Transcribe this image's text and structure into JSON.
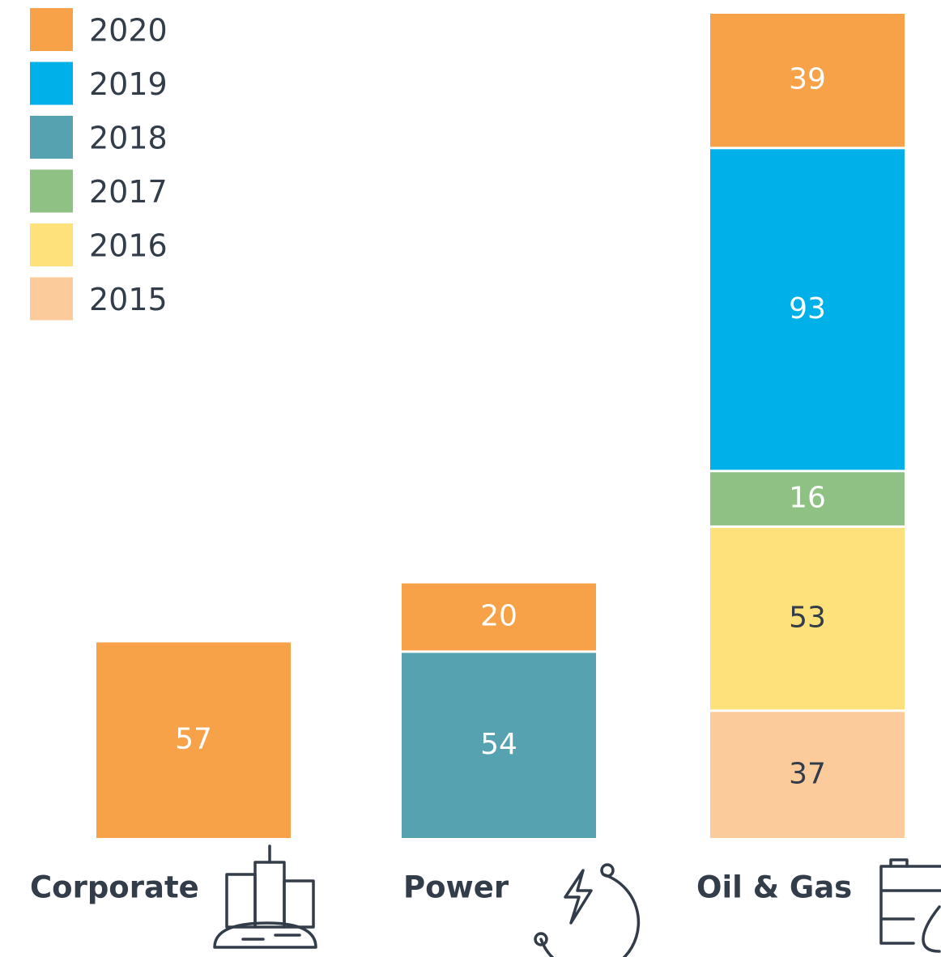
{
  "chart_data": {
    "type": "stacked-bar",
    "categories": [
      "Corporate",
      "Power",
      "Oil & Gas"
    ],
    "series": [
      {
        "name": "2020",
        "color": "#f7a148",
        "values": [
          57,
          20,
          39
        ]
      },
      {
        "name": "2019",
        "color": "#00b0e8",
        "values": [
          null,
          null,
          93
        ]
      },
      {
        "name": "2018",
        "color": "#56a2b0",
        "values": [
          null,
          54,
          null
        ]
      },
      {
        "name": "2017",
        "color": "#8ec183",
        "values": [
          null,
          null,
          16
        ]
      },
      {
        "name": "2016",
        "color": "#fee17b",
        "values": [
          null,
          null,
          53
        ]
      },
      {
        "name": "2015",
        "color": "#fccb9c",
        "values": [
          null,
          null,
          37
        ]
      }
    ]
  }
}
